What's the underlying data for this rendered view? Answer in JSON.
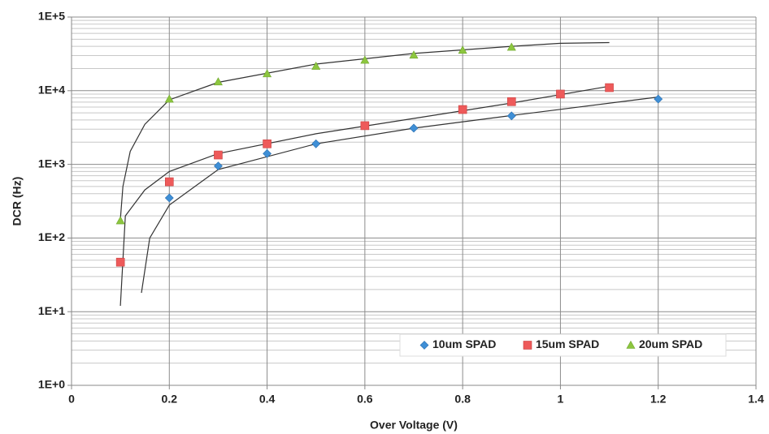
{
  "chart_data": {
    "type": "scatter",
    "x_label": "Over Voltage (V)",
    "y_label": "DCR (Hz)",
    "xlim": [
      0,
      1.4
    ],
    "xticks": [
      0,
      0.2,
      0.4,
      0.6,
      0.8,
      1,
      1.2,
      1.4
    ],
    "ylim": [
      1,
      100000
    ],
    "yticks": [
      {
        "value": 1,
        "label": "1E+0"
      },
      {
        "value": 10,
        "label": "1E+1"
      },
      {
        "value": 100,
        "label": "1E+2"
      },
      {
        "value": 1000,
        "label": "1E+3"
      },
      {
        "value": 10000,
        "label": "1E+4"
      },
      {
        "value": 100000,
        "label": "1E+5"
      }
    ],
    "log_y": true,
    "grid": true,
    "minor_grid": true,
    "legend": "lower right",
    "series": [
      {
        "name": "10um SPAD",
        "color": "#3f8fd6",
        "marker": "diamond",
        "x": [
          0.2,
          0.3,
          0.4,
          0.5,
          0.7,
          0.9,
          1.2
        ],
        "values": [
          350,
          950,
          1400,
          1900,
          3100,
          4550,
          7700
        ]
      },
      {
        "name": "15um SPAD",
        "color": "#ee5a5a",
        "marker": "square",
        "x": [
          0.1,
          0.2,
          0.3,
          0.4,
          0.6,
          0.8,
          0.9,
          1.0,
          1.1
        ],
        "values": [
          47,
          580,
          1340,
          1900,
          3350,
          5550,
          7100,
          9000,
          11000
        ]
      },
      {
        "name": "20um SPAD",
        "color": "#8dc63f",
        "marker": "triangle",
        "x": [
          0.1,
          0.2,
          0.3,
          0.4,
          0.5,
          0.6,
          0.7,
          0.8,
          0.9
        ],
        "values": [
          172,
          7700,
          13200,
          17000,
          21500,
          26000,
          30500,
          35500,
          39000
        ]
      }
    ],
    "trendlines": [
      {
        "color": "#333333",
        "x": [
          0.143,
          0.16,
          0.2,
          0.3,
          0.5,
          0.7,
          0.9,
          1.2
        ],
        "values": [
          18,
          100,
          280,
          850,
          1900,
          3100,
          4600,
          8200
        ]
      },
      {
        "color": "#333333",
        "x": [
          0.1,
          0.11,
          0.15,
          0.2,
          0.3,
          0.5,
          0.7,
          0.9,
          1.1
        ],
        "values": [
          12,
          200,
          450,
          800,
          1400,
          2600,
          4200,
          6800,
          11500
        ]
      },
      {
        "color": "#333333",
        "x": [
          0.1,
          0.105,
          0.12,
          0.15,
          0.2,
          0.3,
          0.5,
          0.7,
          0.9,
          1.0,
          1.1
        ],
        "values": [
          180,
          500,
          1500,
          3500,
          7500,
          13000,
          23000,
          32000,
          40000,
          44000,
          45000
        ]
      }
    ]
  }
}
